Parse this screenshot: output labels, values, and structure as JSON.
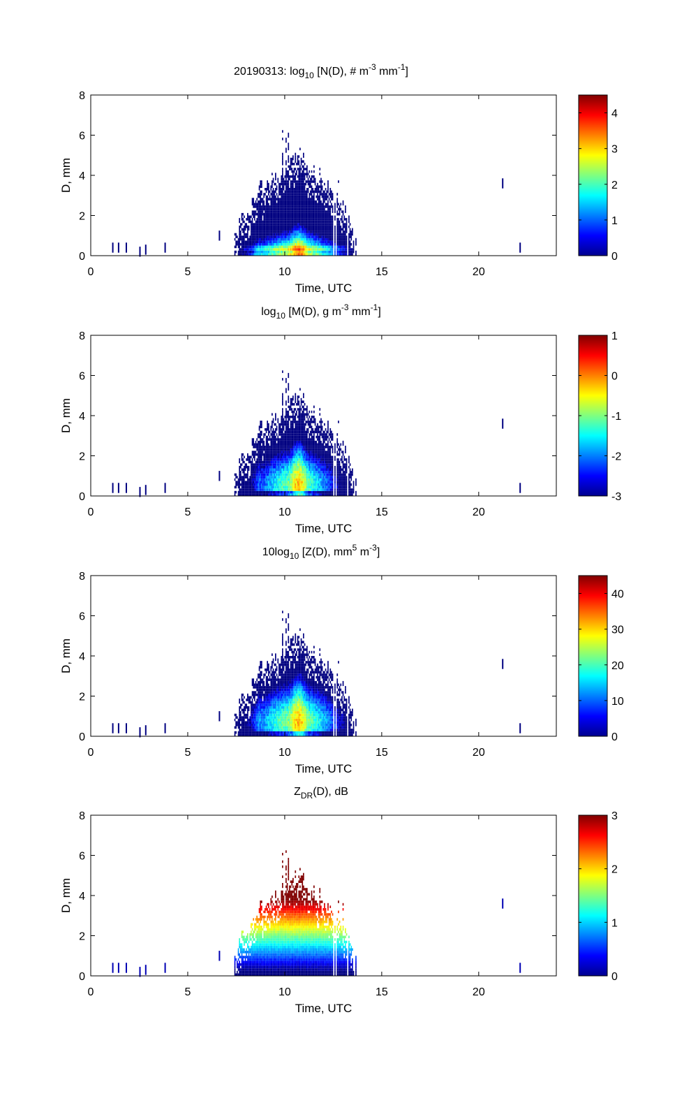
{
  "figure": {
    "date": "20190313"
  },
  "chart_data": [
    {
      "type": "heatmap",
      "title": "20190313: log10 [N(D), # m-3 mm-1]",
      "title_parts": {
        "prefix": "20190313: log",
        "sub": "10",
        "mid1": " [N(D), # m",
        "sup1": "-3",
        "mid2": " mm",
        "sup2": "-1",
        "end": "]"
      },
      "xlabel": "Time, UTC",
      "ylabel": "D, mm",
      "xlim": [
        0,
        24
      ],
      "ylim": [
        0,
        8
      ],
      "xticks": [
        0,
        5,
        10,
        15,
        20
      ],
      "yticks": [
        0,
        2,
        4,
        6,
        8
      ],
      "colorbar": {
        "range": [
          0,
          4.5
        ],
        "ticks": [
          0,
          1,
          2,
          3,
          4
        ],
        "colormap": "jet"
      },
      "field": "N",
      "event": {
        "start": 7.4,
        "end": 13.7,
        "peak": 10.7,
        "max_d": 6.3
      },
      "isolated": [
        {
          "t": 1.1,
          "d": 0.4
        },
        {
          "t": 1.4,
          "d": 0.4
        },
        {
          "t": 1.8,
          "d": 0.4
        },
        {
          "t": 2.5,
          "d": 0.2
        },
        {
          "t": 2.8,
          "d": 0.3
        },
        {
          "t": 3.8,
          "d": 0.4
        },
        {
          "t": 6.6,
          "d": 1.0
        },
        {
          "t": 21.2,
          "d": 3.6
        },
        {
          "t": 22.1,
          "d": 0.4
        }
      ]
    },
    {
      "type": "heatmap",
      "title": "log10 [M(D), g m-3 mm-1]",
      "title_parts": {
        "prefix": "log",
        "sub": "10",
        "mid1": " [M(D), g m",
        "sup1": "-3",
        "mid2": " mm",
        "sup2": "-1",
        "end": "]"
      },
      "xlabel": "Time, UTC",
      "ylabel": "D, mm",
      "xlim": [
        0,
        24
      ],
      "ylim": [
        0,
        8
      ],
      "xticks": [
        0,
        5,
        10,
        15,
        20
      ],
      "yticks": [
        0,
        2,
        4,
        6,
        8
      ],
      "colorbar": {
        "range": [
          -3,
          1
        ],
        "ticks": [
          -3,
          -2,
          -1,
          0,
          1
        ],
        "colormap": "jet"
      },
      "field": "M"
    },
    {
      "type": "heatmap",
      "title": "10log10 [Z(D), mm5 m-3]",
      "title_parts": {
        "prefix": "10log",
        "sub": "10",
        "mid1": " [Z(D),  mm",
        "sup1": "5",
        "mid2": " m",
        "sup2": "-3",
        "end": "]"
      },
      "xlabel": "Time, UTC",
      "ylabel": "D, mm",
      "xlim": [
        0,
        24
      ],
      "ylim": [
        0,
        8
      ],
      "xticks": [
        0,
        5,
        10,
        15,
        20
      ],
      "yticks": [
        0,
        2,
        4,
        6,
        8
      ],
      "colorbar": {
        "range": [
          0,
          45
        ],
        "ticks": [
          0,
          10,
          20,
          30,
          40
        ],
        "colormap": "jet"
      },
      "field": "Z"
    },
    {
      "type": "heatmap",
      "title": "ZDR(D), dB",
      "title_parts": {
        "prefix": "Z",
        "sub": "DR",
        "mid1": "(D), dB",
        "sup1": "",
        "mid2": "",
        "sup2": "",
        "end": ""
      },
      "xlabel": "Time, UTC",
      "ylabel": "D, mm",
      "xlim": [
        0,
        24
      ],
      "ylim": [
        0,
        8
      ],
      "xticks": [
        0,
        5,
        10,
        15,
        20
      ],
      "yticks": [
        0,
        2,
        4,
        6,
        8
      ],
      "colorbar": {
        "range": [
          0,
          3
        ],
        "ticks": [
          0,
          1,
          2,
          3
        ],
        "colormap": "jet"
      },
      "field": "ZDR"
    }
  ]
}
